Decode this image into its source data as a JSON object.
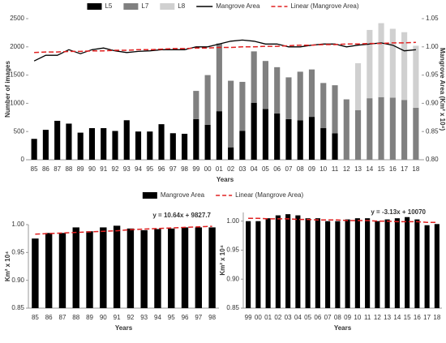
{
  "chart_data": [
    {
      "type": "bar",
      "stacked": true,
      "legend": "top",
      "categories": [
        "85",
        "86",
        "87",
        "88",
        "89",
        "90",
        "91",
        "92",
        "93",
        "94",
        "95",
        "96",
        "97",
        "98",
        "99",
        "00",
        "01",
        "02",
        "03",
        "04",
        "05",
        "06",
        "07",
        "08",
        "09",
        "10",
        "11",
        "12",
        "13",
        "14",
        "15",
        "16",
        "17",
        "18"
      ],
      "x_label": "Years",
      "y_label": "Number of images",
      "y2_label": "Mangrove Area (Km² x 10⁴)",
      "ylim": [
        0,
        2500
      ],
      "yticks": [
        0,
        500,
        1000,
        1500,
        2000,
        2500
      ],
      "y2lim": [
        0.8,
        1.05
      ],
      "y2ticks": [
        {
          "value": 0.8,
          "label": "0.80"
        },
        {
          "value": 0.85,
          "label": "0.85"
        },
        {
          "value": 0.9,
          "label": "0.90"
        },
        {
          "value": 0.95,
          "label": "0.95"
        },
        {
          "value": 1.0,
          "label": "1.00"
        },
        {
          "value": 1.05,
          "label": "1.05"
        }
      ],
      "series": [
        {
          "name": "L5",
          "color": "#000000",
          "values": [
            370,
            530,
            690,
            640,
            480,
            560,
            560,
            510,
            700,
            500,
            500,
            630,
            470,
            460,
            720,
            620,
            860,
            220,
            510,
            1010,
            900,
            820,
            720,
            700,
            760,
            560,
            470,
            0,
            0,
            0,
            0,
            0,
            0,
            0
          ]
        },
        {
          "name": "L7",
          "color": "#808080",
          "values": [
            0,
            0,
            0,
            0,
            0,
            0,
            0,
            0,
            0,
            0,
            0,
            0,
            0,
            0,
            500,
            880,
            1200,
            1180,
            870,
            910,
            850,
            820,
            740,
            860,
            840,
            800,
            850,
            1070,
            880,
            1090,
            1110,
            1100,
            1060,
            920
          ]
        },
        {
          "name": "L8",
          "color": "#d0d0d0",
          "values": [
            0,
            0,
            0,
            0,
            0,
            0,
            0,
            0,
            0,
            0,
            0,
            0,
            0,
            0,
            0,
            0,
            0,
            0,
            0,
            0,
            0,
            0,
            0,
            0,
            0,
            0,
            0,
            0,
            830,
            1210,
            1310,
            1220,
            1200,
            1100
          ]
        },
        {
          "name": "Mangrove Area",
          "type": "line",
          "axis": "y2",
          "color": "#000000",
          "values": [
            0.975,
            0.985,
            0.985,
            0.995,
            0.988,
            0.995,
            0.998,
            0.993,
            0.99,
            0.992,
            0.993,
            0.995,
            0.995,
            0.995,
            1.0,
            1.0,
            1.005,
            1.01,
            1.012,
            1.01,
            1.005,
            1.005,
            1.0,
            1.0,
            1.003,
            1.005,
            1.005,
            1.0,
            1.003,
            1.005,
            1.007,
            1.003,
            0.993,
            0.995
          ]
        },
        {
          "name": "Linear (Mangrove Area)",
          "type": "line",
          "dashed": true,
          "axis": "y2",
          "color": "#e02020",
          "values": [
            0.99,
            0.991,
            0.991,
            0.992,
            0.992,
            0.993,
            0.993,
            0.994,
            0.994,
            0.995,
            0.995,
            0.996,
            0.997,
            0.997,
            0.998,
            0.998,
            0.999,
            0.999,
            1.0,
            1.0,
            1.001,
            1.001,
            1.002,
            1.003,
            1.003,
            1.004,
            1.004,
            1.005,
            1.005,
            1.006,
            1.006,
            1.007,
            1.007,
            1.008
          ]
        }
      ]
    },
    {
      "type": "bar",
      "legend": "top",
      "annotation": "y = 10.64x + 9827.7",
      "categories": [
        "85",
        "86",
        "87",
        "88",
        "89",
        "90",
        "91",
        "92",
        "93",
        "94",
        "95",
        "96",
        "97",
        "98"
      ],
      "x_label": "Years",
      "y_label": "Km² x 10⁴",
      "ylim": [
        0.85,
        1.0
      ],
      "yticks": [
        {
          "value": 0.85,
          "label": "0.85"
        },
        {
          "value": 0.9,
          "label": "0.90"
        },
        {
          "value": 0.95,
          "label": "0.95"
        },
        {
          "value": 1.0,
          "label": "1.00"
        }
      ],
      "series": [
        {
          "name": "Mangrove Area",
          "color": "#000000",
          "values": [
            0.975,
            0.985,
            0.985,
            0.995,
            0.988,
            0.995,
            0.998,
            0.993,
            0.99,
            0.992,
            0.993,
            0.995,
            0.995,
            0.995
          ]
        },
        {
          "name": "Linear (Mangrove Area)",
          "type": "line",
          "dashed": true,
          "color": "#e02020",
          "values": [
            0.983,
            0.984,
            0.985,
            0.986,
            0.987,
            0.988,
            0.989,
            0.991,
            0.992,
            0.993,
            0.994,
            0.995,
            0.996,
            0.997
          ]
        }
      ]
    },
    {
      "type": "bar",
      "annotation": "y = -3.13x + 10070",
      "categories": [
        "99",
        "00",
        "01",
        "02",
        "03",
        "04",
        "05",
        "06",
        "07",
        "08",
        "09",
        "10",
        "11",
        "12",
        "13",
        "14",
        "15",
        "16",
        "17",
        "18"
      ],
      "x_label": "Years",
      "y_label": "Km² x 10⁴",
      "ylim": [
        0.85,
        1.015
      ],
      "yticks": [
        {
          "value": 0.85,
          "label": "0.85"
        },
        {
          "value": 0.9,
          "label": "0.90"
        },
        {
          "value": 0.95,
          "label": "0.95"
        },
        {
          "value": 1.0,
          "label": "1.00"
        }
      ],
      "series": [
        {
          "color": "#000000",
          "values": [
            1.0,
            1.0,
            1.005,
            1.01,
            1.012,
            1.01,
            1.005,
            1.005,
            1.0,
            1.0,
            1.003,
            1.005,
            1.005,
            1.0,
            1.003,
            1.005,
            1.007,
            1.003,
            0.993,
            0.995
          ]
        },
        {
          "type": "line",
          "dashed": true,
          "color": "#e02020",
          "values": [
            1.005,
            1.005,
            1.004,
            1.004,
            1.004,
            1.003,
            1.003,
            1.002,
            1.002,
            1.002,
            1.001,
            1.001,
            1.001,
            1.0,
            1.0,
            0.999,
            0.999,
            0.999,
            0.998,
            0.998
          ]
        }
      ]
    }
  ]
}
